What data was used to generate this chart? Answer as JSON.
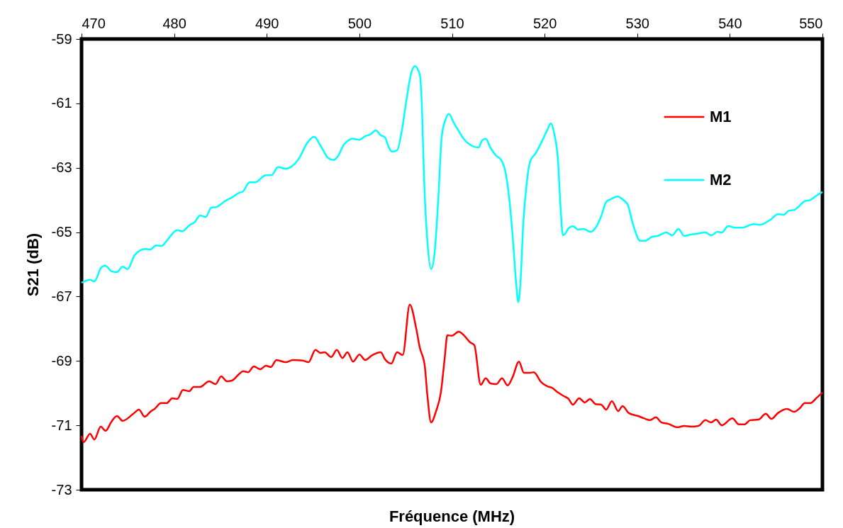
{
  "chart_data": {
    "type": "line",
    "xlabel": "Fréquence (MHz)",
    "ylabel": "S21 (dB)",
    "xlim": [
      470,
      550
    ],
    "xticks": [
      470,
      480,
      490,
      500,
      510,
      520,
      530,
      540,
      550
    ],
    "ylim": [
      -73,
      -59
    ],
    "yticks": [
      -73,
      -71,
      -69,
      -67,
      -65,
      -63,
      -61,
      -59
    ],
    "grid": false,
    "legend": "top right",
    "line_style": "solid",
    "marker": "none",
    "series": [
      {
        "name": "M1",
        "color": "#ff0000",
        "x": [
          470.0,
          470.23,
          470.92,
          471.38,
          472.07,
          472.6,
          473.22,
          473.83,
          474.44,
          475.59,
          476.2,
          476.81,
          477.5,
          477.89,
          478.57,
          479.19,
          479.8,
          480.34,
          480.95,
          481.64,
          482.1,
          482.78,
          483.78,
          484.47,
          485.08,
          485.69,
          486.23,
          487.0,
          487.45,
          487.99,
          488.6,
          489.29,
          489.9,
          490.44,
          491.05,
          492.05,
          492.81,
          493.89,
          494.5,
          495.26,
          495.8,
          496.26,
          496.95,
          497.56,
          498.17,
          498.71,
          499.32,
          500.01,
          500.62,
          501.39,
          502.31,
          502.77,
          503.45,
          504.07,
          504.68,
          505.44,
          506.13,
          506.52,
          507.05,
          507.36,
          507.74,
          508.28,
          508.81,
          509.2,
          509.5,
          509.96,
          510.73,
          511.34,
          511.95,
          512.41,
          513.1,
          513.64,
          514.17,
          514.79,
          515.4,
          516.01,
          516.55,
          517.23,
          517.77,
          518.38,
          518.84,
          519.61,
          520.3,
          520.76,
          521.45,
          522.06,
          522.59,
          523.05,
          523.74,
          524.35,
          524.89,
          525.5,
          526.12,
          526.65,
          527.26,
          527.95,
          528.41,
          529.1,
          530.1,
          530.71,
          531.4,
          532.01,
          532.62,
          533.31,
          534.31,
          535.07,
          535.84,
          536.6,
          537.37,
          537.98,
          538.52,
          539.13,
          540.28,
          540.97,
          541.58,
          542.19,
          543.11,
          543.88,
          544.49,
          545.18,
          546.17,
          546.94,
          547.55,
          548.09,
          548.7,
          549.39,
          550.0
        ],
        "values": [
          -71.33,
          -71.52,
          -71.26,
          -71.44,
          -71.04,
          -71.17,
          -70.89,
          -70.71,
          -70.86,
          -70.64,
          -70.51,
          -70.73,
          -70.56,
          -70.49,
          -70.31,
          -70.31,
          -70.16,
          -70.18,
          -69.9,
          -69.94,
          -69.81,
          -69.81,
          -69.63,
          -69.72,
          -69.48,
          -69.63,
          -69.61,
          -69.41,
          -69.32,
          -69.35,
          -69.17,
          -69.26,
          -69.15,
          -69.19,
          -68.97,
          -69.04,
          -68.97,
          -68.99,
          -69.04,
          -68.66,
          -68.75,
          -68.73,
          -68.88,
          -68.66,
          -68.91,
          -68.73,
          -69.02,
          -68.8,
          -68.97,
          -68.82,
          -68.73,
          -68.95,
          -69.08,
          -68.73,
          -68.82,
          -67.25,
          -67.98,
          -68.58,
          -69.13,
          -70.12,
          -70.91,
          -70.56,
          -69.96,
          -68.95,
          -68.2,
          -68.22,
          -68.09,
          -68.22,
          -68.42,
          -68.51,
          -69.74,
          -69.54,
          -69.7,
          -69.72,
          -69.54,
          -69.76,
          -69.5,
          -69.02,
          -69.37,
          -69.37,
          -69.35,
          -69.65,
          -69.79,
          -69.83,
          -69.98,
          -70.09,
          -70.18,
          -70.36,
          -70.16,
          -70.29,
          -70.18,
          -70.34,
          -70.36,
          -70.51,
          -70.25,
          -70.56,
          -70.4,
          -70.62,
          -70.71,
          -70.78,
          -70.84,
          -70.75,
          -70.91,
          -70.95,
          -71.06,
          -71.02,
          -71.04,
          -71.02,
          -70.84,
          -70.91,
          -70.82,
          -71.0,
          -70.78,
          -70.97,
          -70.97,
          -70.84,
          -70.82,
          -70.64,
          -70.8,
          -70.62,
          -70.49,
          -70.58,
          -70.47,
          -70.31,
          -70.31,
          -70.14,
          -69.98
        ]
      },
      {
        "name": "M2",
        "color": "#00ffff",
        "x": [
          470.0,
          470.92,
          471.38,
          472.14,
          472.53,
          473.29,
          473.83,
          474.44,
          474.98,
          475.74,
          476.89,
          477.43,
          478.04,
          478.65,
          479.19,
          480.34,
          480.87,
          481.64,
          482.25,
          482.79,
          483.4,
          484.01,
          484.55,
          485.46,
          486.31,
          487.0,
          487.45,
          488.14,
          488.76,
          489.9,
          490.52,
          491.21,
          492.05,
          492.58,
          493.5,
          494.34,
          495.11,
          495.88,
          496.64,
          497.18,
          497.71,
          498.33,
          499.32,
          500.01,
          500.62,
          501.16,
          501.77,
          502.31,
          502.77,
          503.15,
          503.53,
          504.07,
          504.6,
          505.06,
          505.6,
          505.98,
          506.52,
          506.75,
          506.98,
          507.36,
          507.74,
          508.12,
          508.51,
          508.89,
          509.27,
          509.66,
          510.19,
          510.73,
          511.34,
          511.95,
          512.87,
          513.25,
          513.64,
          514.17,
          514.79,
          515.32,
          515.78,
          516.16,
          516.55,
          516.93,
          517.16,
          517.39,
          517.69,
          518.08,
          518.46,
          518.99,
          519.76,
          520.3,
          520.68,
          521.06,
          521.45,
          521.68,
          521.98,
          522.21,
          522.59,
          523.05,
          523.59,
          524.2,
          524.97,
          525.66,
          526.12,
          526.65,
          527.19,
          527.88,
          528.57,
          528.95,
          529.56,
          530.33,
          530.86,
          531.63,
          532.16,
          533.16,
          533.77,
          534.46,
          535.07,
          535.68,
          536.45,
          537.37,
          537.98,
          538.67,
          539.13,
          539.82,
          540.58,
          541.35,
          542.57,
          543.26,
          544.49,
          545.18,
          545.79,
          546.4,
          546.94,
          548.09,
          548.7,
          549.39,
          550.0
        ],
        "values": [
          -66.57,
          -66.48,
          -66.53,
          -66.09,
          -66.04,
          -66.22,
          -66.24,
          -66.07,
          -66.15,
          -65.71,
          -65.52,
          -65.54,
          -65.41,
          -65.43,
          -65.27,
          -64.94,
          -64.97,
          -64.79,
          -64.68,
          -64.48,
          -64.53,
          -64.24,
          -64.22,
          -64.04,
          -63.91,
          -63.78,
          -63.73,
          -63.45,
          -63.45,
          -63.23,
          -63.23,
          -62.98,
          -63.03,
          -62.98,
          -62.7,
          -62.24,
          -62.04,
          -62.35,
          -62.7,
          -62.76,
          -62.63,
          -62.28,
          -62.1,
          -62.13,
          -62.02,
          -61.97,
          -61.84,
          -61.99,
          -62.06,
          -62.35,
          -62.5,
          -62.46,
          -61.82,
          -60.94,
          -60.06,
          -59.84,
          -60.1,
          -61.09,
          -63.29,
          -65.34,
          -66.15,
          -65.65,
          -64.02,
          -62.04,
          -61.53,
          -61.33,
          -61.6,
          -61.86,
          -62.13,
          -62.28,
          -62.37,
          -62.15,
          -62.1,
          -62.39,
          -62.63,
          -62.76,
          -63.14,
          -63.89,
          -65.12,
          -66.59,
          -67.17,
          -66.59,
          -64.77,
          -63.45,
          -62.79,
          -62.57,
          -62.15,
          -61.82,
          -61.62,
          -61.97,
          -62.79,
          -64.02,
          -65.1,
          -65.05,
          -64.88,
          -64.81,
          -64.92,
          -64.9,
          -64.99,
          -64.79,
          -64.5,
          -64.06,
          -63.97,
          -63.89,
          -64.02,
          -64.13,
          -64.77,
          -65.27,
          -65.27,
          -65.14,
          -65.12,
          -65.01,
          -65.1,
          -64.9,
          -65.12,
          -65.08,
          -65.05,
          -65.01,
          -65.1,
          -64.99,
          -65.01,
          -64.81,
          -64.86,
          -64.86,
          -64.75,
          -64.77,
          -64.59,
          -64.44,
          -64.46,
          -64.33,
          -64.31,
          -64.04,
          -64.0,
          -63.86,
          -63.75
        ]
      }
    ]
  }
}
